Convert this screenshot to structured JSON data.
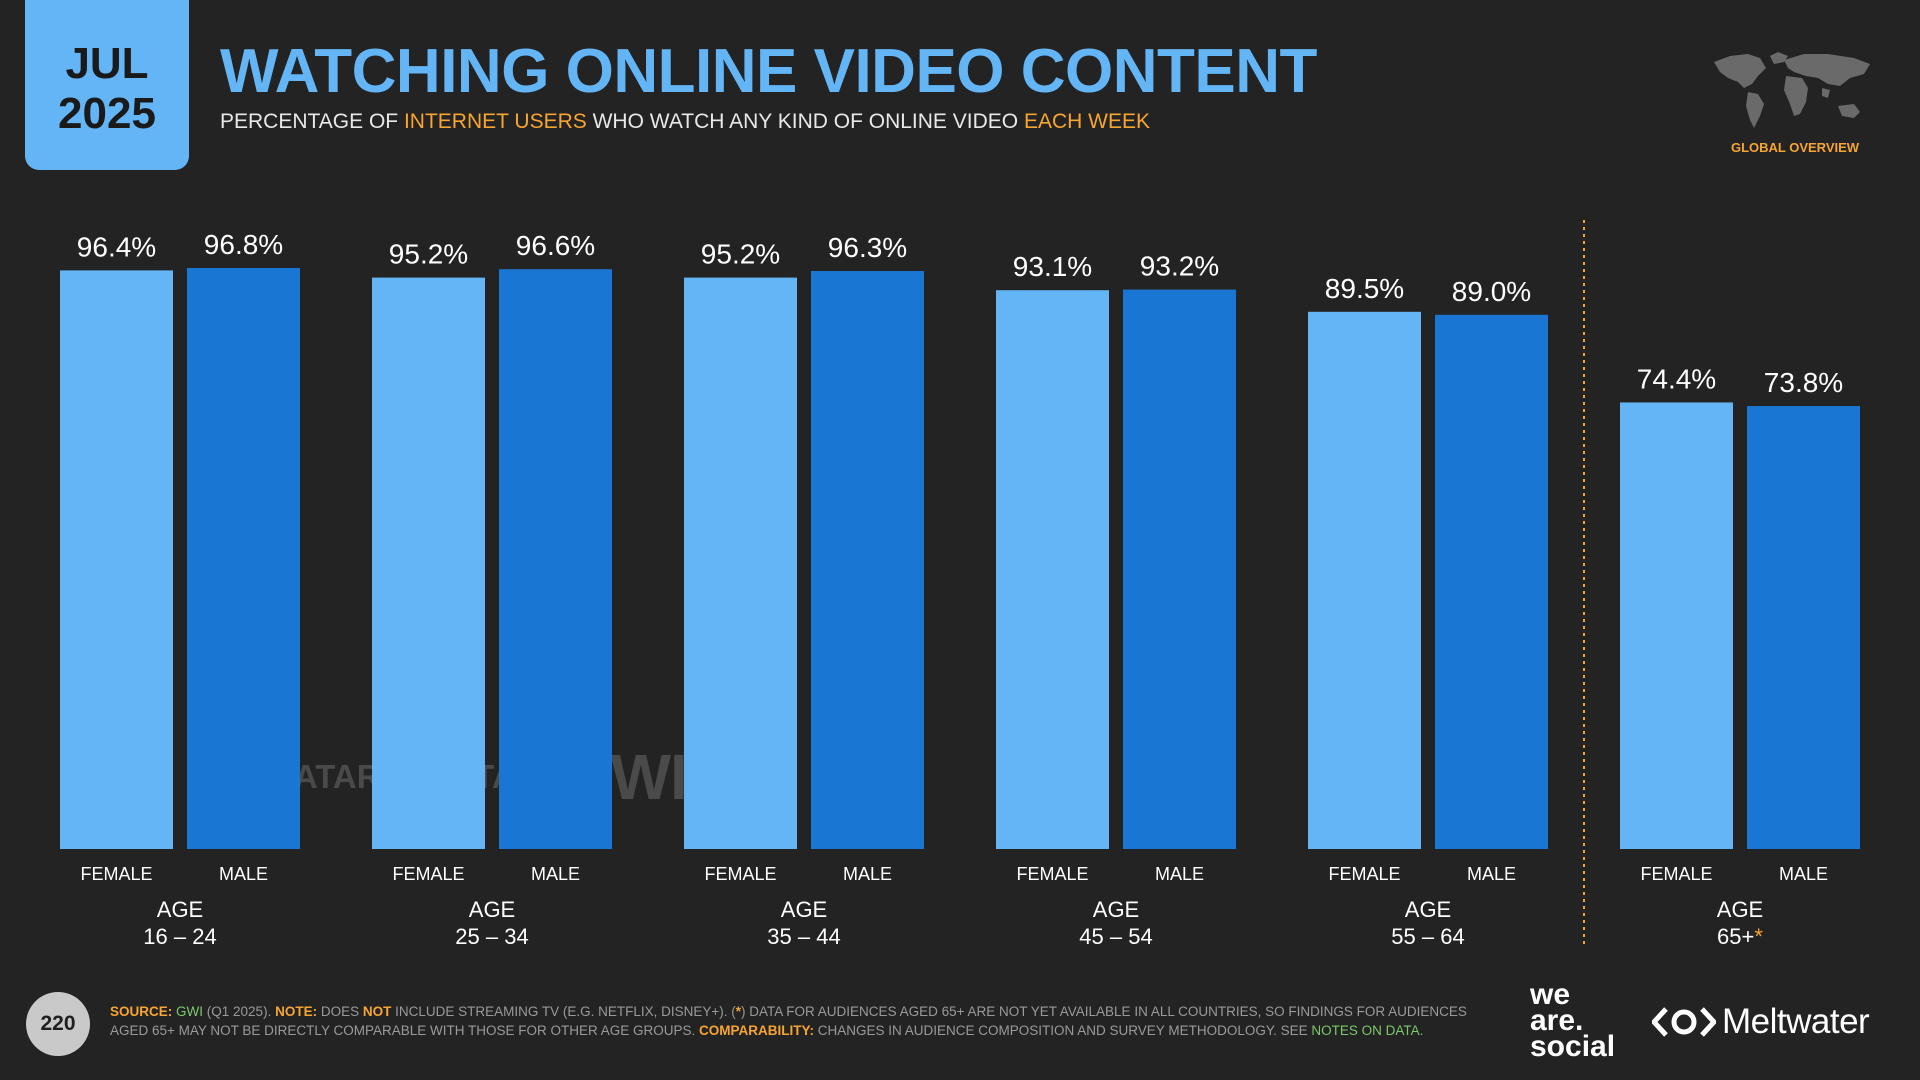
{
  "badge": {
    "month": "JUL",
    "year": "2025"
  },
  "header": {
    "title": "WATCHING ONLINE VIDEO CONTENT",
    "subtitle_parts": [
      "PERCENTAGE OF ",
      "INTERNET USERS",
      " WHO WATCH ANY KIND OF ONLINE VIDEO ",
      "EACH WEEK"
    ]
  },
  "global_label": "GLOBAL OVERVIEW",
  "watermark": {
    "datareportal": "DATAREPORTAL",
    "gwi": "GWI."
  },
  "colors": {
    "female": "#64b5f6",
    "male": "#1976d2",
    "accent": "#f7a530",
    "background": "#232323"
  },
  "chart_data": {
    "type": "bar",
    "ylim": [
      0,
      100
    ],
    "series": [
      {
        "name": "FEMALE",
        "values": [
          96.4,
          95.2,
          95.2,
          93.1,
          89.5,
          74.4
        ],
        "labels": [
          "96.4%",
          "95.2%",
          "95.2%",
          "93.1%",
          "89.5%",
          "74.4%"
        ]
      },
      {
        "name": "MALE",
        "values": [
          96.8,
          96.6,
          96.3,
          93.2,
          89.0,
          73.8
        ],
        "labels": [
          "96.8%",
          "96.6%",
          "96.3%",
          "93.2%",
          "89.0%",
          "73.8%"
        ]
      }
    ],
    "groups": [
      {
        "age_label": "AGE",
        "range": "16 – 24",
        "asterisk": ""
      },
      {
        "age_label": "AGE",
        "range": "25 – 34",
        "asterisk": ""
      },
      {
        "age_label": "AGE",
        "range": "35 – 44",
        "asterisk": ""
      },
      {
        "age_label": "AGE",
        "range": "45 – 54",
        "asterisk": ""
      },
      {
        "age_label": "AGE",
        "range": "55 – 64",
        "asterisk": ""
      },
      {
        "age_label": "AGE",
        "range": "65+",
        "asterisk": "*"
      }
    ]
  },
  "footer": {
    "page_number": "220",
    "source_label": "SOURCE:",
    "source_gwi": "GWI",
    "source_rest": " (Q1 2025). ",
    "note_label": "NOTE:",
    "note_a": " DOES ",
    "note_not": "NOT",
    "note_b": " INCLUDE STREAMING TV (E.G. NETFLIX, DISNEY+). (",
    "note_star": "*",
    "note_c": ") DATA FOR AUDIENCES AGED 65+ ARE NOT YET AVAILABLE IN ALL COUNTRIES, SO FINDINGS FOR AUDIENCES AGED 65+ MAY NOT BE DIRECTLY COMPARABLE WITH THOSE FOR OTHER AGE GROUPS. ",
    "comparability_label": "COMPARABILITY:",
    "comparability_text": " CHANGES IN AUDIENCE COMPOSITION AND SURVEY METHODOLOGY. SEE ",
    "notes_link": "NOTES ON DATA",
    "end": "."
  },
  "brands": {
    "we": "we",
    "are": "are.",
    "social": "social",
    "meltwater": "Meltwater"
  }
}
